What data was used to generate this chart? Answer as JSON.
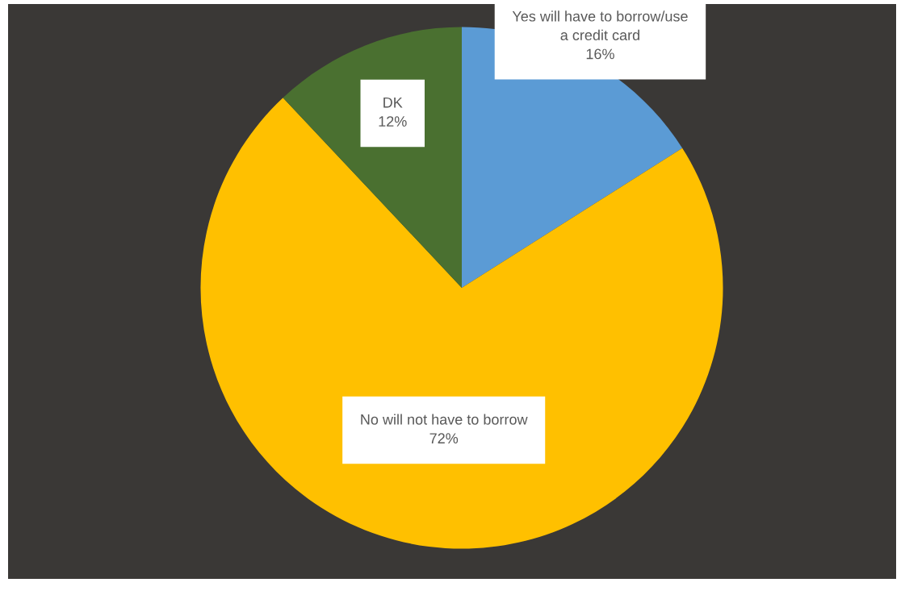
{
  "chart_data": {
    "type": "pie",
    "categories": [
      "Yes will have to borrow/use a credit card",
      "No will not have to borrow",
      "DK"
    ],
    "values": [
      16,
      72,
      12
    ],
    "colors": [
      "#5b9bd5",
      "#ffc000",
      "#4a7030"
    ],
    "value_labels": [
      "16%",
      "72%",
      "12%"
    ],
    "legend": false
  }
}
